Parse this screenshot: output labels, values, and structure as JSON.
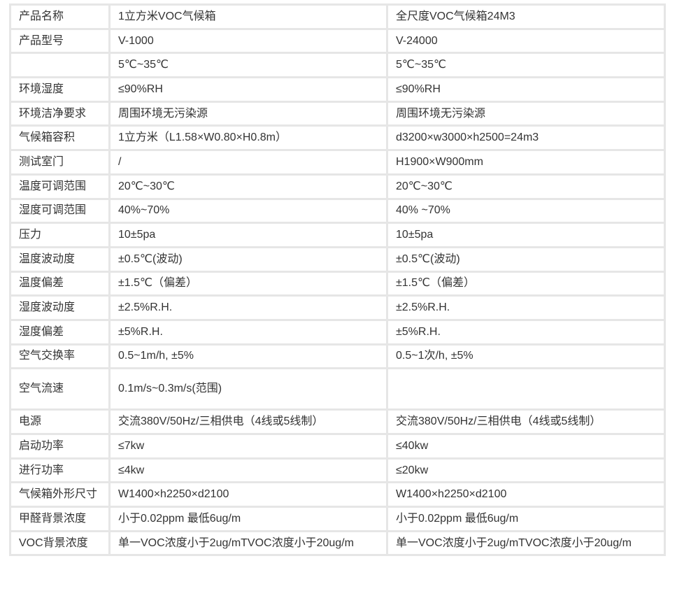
{
  "rows": [
    {
      "label": "产品名称",
      "v1": "1立方米VOC气候箱",
      "v2": "全尺度VOC气候箱24M3"
    },
    {
      "label": "产品型号",
      "v1": "V-1000",
      "v2": "V-24000"
    },
    {
      "label": "",
      "v1": "5℃~35℃",
      "v2": "5℃~35℃"
    },
    {
      "label": "环境湿度",
      "v1": "≤90%RH",
      "v2": "≤90%RH"
    },
    {
      "label": "环境洁净要求",
      "v1": "周围环境无污染源",
      "v2": "周围环境无污染源"
    },
    {
      "label": "气候箱容积",
      "v1": "1立方米（L1.58×W0.80×H0.8m）",
      "v2": "d3200×w3000×h2500=24m3"
    },
    {
      "label": "测试室门",
      "v1": "/",
      "v2": "H1900×W900mm"
    },
    {
      "label": "温度可调范围",
      "v1": "20℃~30℃",
      "v2": "20℃~30℃"
    },
    {
      "label": "湿度可调范围",
      "v1": "40%~70%",
      "v2": "40% ~70%"
    },
    {
      "label": "压力",
      "v1": "10±5pa",
      "v2": "10±5pa"
    },
    {
      "label": "温度波动度",
      "v1": "±0.5℃(波动)",
      "v2": "±0.5℃(波动)"
    },
    {
      "label": "温度偏差",
      "v1": "±1.5℃（偏差）",
      "v2": "±1.5℃（偏差）"
    },
    {
      "label": "湿度波动度",
      "v1": "±2.5%R.H.",
      "v2": "±2.5%R.H."
    },
    {
      "label": "湿度偏差",
      "v1": "±5%R.H.",
      "v2": "±5%R.H."
    },
    {
      "label": "空气交换率",
      "v1": "0.5~1m/h, ±5%",
      "v2": "0.5~1次/h, ±5%"
    },
    {
      "label": "空气流速",
      "v1": "0.1m/s~0.3m/s(范围)",
      "v2": ""
    },
    {
      "label": "电源",
      "v1": "交流380V/50Hz/三相供电（4线或5线制）",
      "v2": "交流380V/50Hz/三相供电（4线或5线制）"
    },
    {
      "label": "启动功率",
      "v1": "≤7kw",
      "v2": "≤40kw"
    },
    {
      "label": "进行功率",
      "v1": "≤4kw",
      "v2": "≤20kw"
    },
    {
      "label": "气候箱外形尺寸",
      "v1": "W1400×h2250×d2100",
      "v2": "W1400×h2250×d2100"
    },
    {
      "label": "甲醛背景浓度",
      "v1": "小于0.02ppm 最低6ug/m",
      "v2": "小于0.02ppm 最低6ug/m"
    },
    {
      "label": "VOC背景浓度",
      "v1": "单一VOC浓度小于2ug/mTVOC浓度小于20ug/m",
      "v2": "单一VOC浓度小于2ug/mTVOC浓度小于20ug/m"
    }
  ]
}
